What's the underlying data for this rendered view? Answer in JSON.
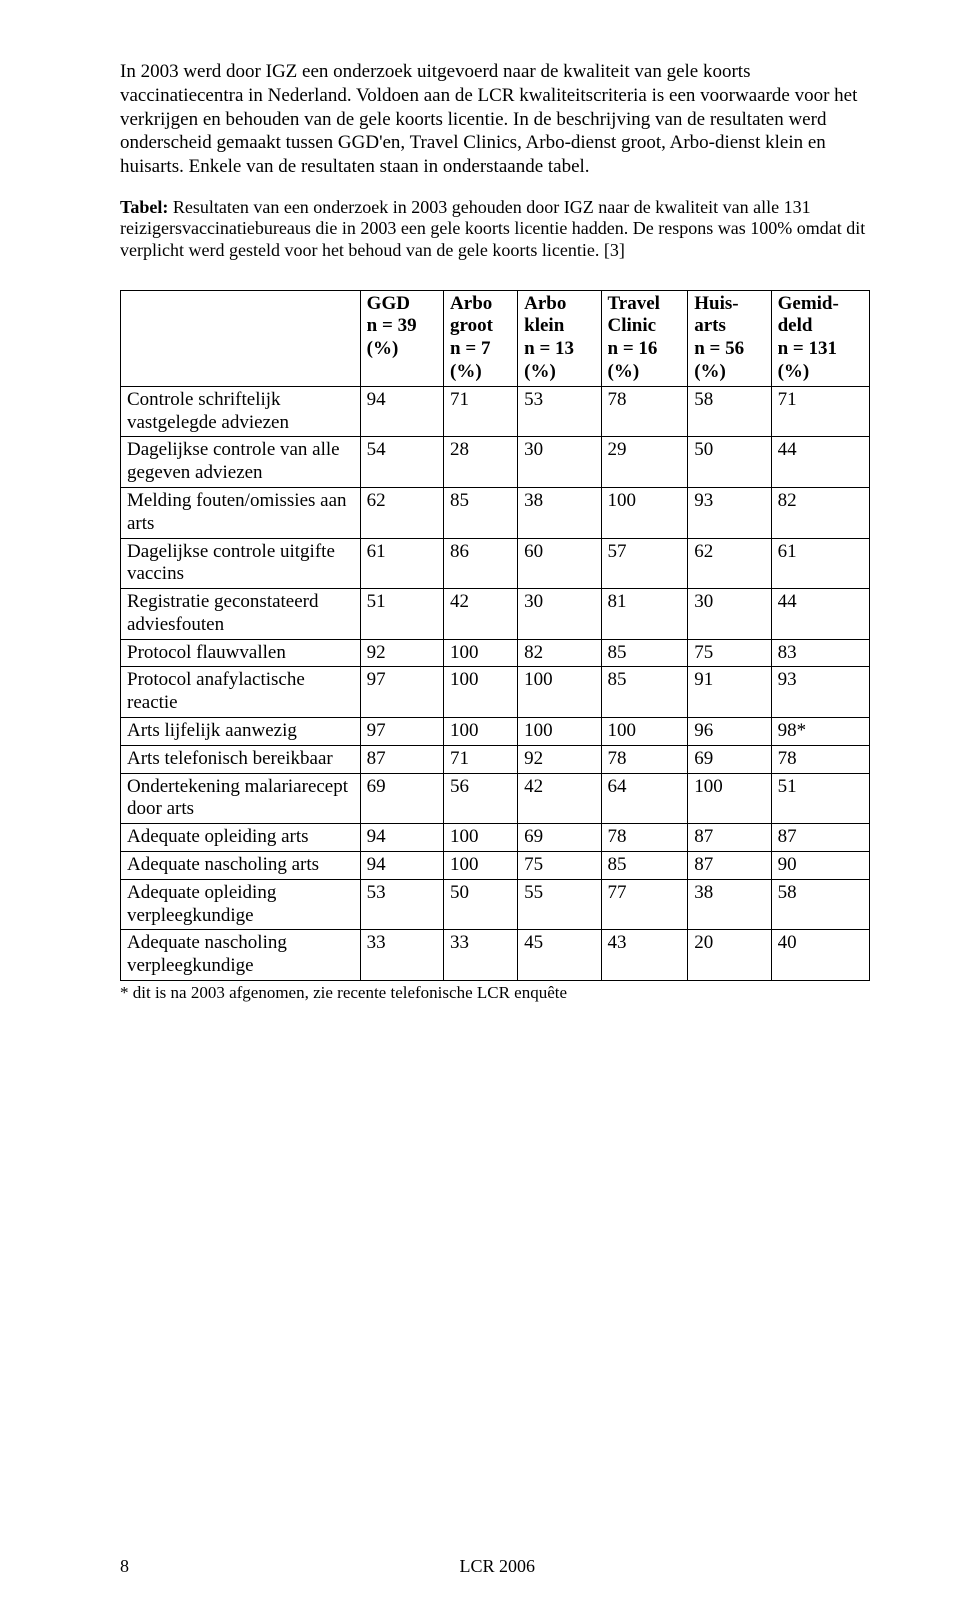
{
  "intro": {
    "para1": "In 2003 werd door IGZ een onderzoek uitgevoerd naar de kwaliteit van gele koorts vaccinatiecentra in Nederland. Voldoen aan de LCR kwaliteitscriteria is een voorwaarde voor het verkrijgen en behouden van de gele koorts licentie. In de beschrijving van de resultaten werd onderscheid gemaakt tussen GGD'en, Travel Clinics, Arbo-dienst groot, Arbo-dienst klein en huisarts. Enkele van de resultaten staan in onderstaande tabel.",
    "caption_label": "Tabel:",
    "caption_rest": " Resultaten van een onderzoek in 2003 gehouden door IGZ naar de kwaliteit van alle 131 reizigersvaccinatiebureaus die in 2003 een gele koorts licentie hadden. De respons was 100% omdat dit verplicht werd gesteld voor het behoud van de gele koorts licentie. [3]"
  },
  "table": {
    "headers": [
      {
        "l1": "",
        "l2": "",
        "l3": "",
        "l4": ""
      },
      {
        "l1": "GGD",
        "l2": "",
        "l3": "n = 39",
        "l4": "(%)"
      },
      {
        "l1": "Arbo",
        "l2": "groot",
        "l3": "n = 7",
        "l4": "(%)"
      },
      {
        "l1": "Arbo",
        "l2": "klein",
        "l3": "n = 13",
        "l4": "(%)"
      },
      {
        "l1": "Travel",
        "l2": "Clinic",
        "l3": "n = 16",
        "l4": " (%)"
      },
      {
        "l1": "Huis-",
        "l2": "arts",
        "l3": "n = 56",
        "l4": "(%)"
      },
      {
        "l1": "Gemid-",
        "l2": "deld",
        "l3": "n = 131",
        "l4": "(%)"
      }
    ],
    "rows": [
      {
        "label": "Controle schriftelijk vastgelegde adviezen",
        "v": [
          "94",
          "71",
          "53",
          "78",
          "58",
          "71"
        ]
      },
      {
        "label": "Dagelijkse controle van alle gegeven adviezen",
        "v": [
          "54",
          "28",
          "30",
          "29",
          "50",
          "44"
        ]
      },
      {
        "label": "Melding fouten/omissies aan arts",
        "v": [
          "62",
          "85",
          "38",
          "100",
          "93",
          "82"
        ]
      },
      {
        "label": "Dagelijkse controle uitgifte vaccins",
        "v": [
          "61",
          "86",
          "60",
          "57",
          "62",
          "61"
        ]
      },
      {
        "label": "Registratie geconstateerd adviesfouten",
        "v": [
          "51",
          "42",
          "30",
          "81",
          "30",
          "44"
        ]
      },
      {
        "label": "Protocol flauwvallen",
        "v": [
          "92",
          "100",
          "82",
          "85",
          "75",
          "83"
        ]
      },
      {
        "label": "Protocol anafylactische reactie",
        "v": [
          "97",
          "100",
          "100",
          "85",
          "91",
          "93"
        ]
      },
      {
        "label": "Arts lijfelijk aanwezig",
        "v": [
          "97",
          "100",
          "100",
          "100",
          "96",
          "98*"
        ]
      },
      {
        "label": "Arts telefonisch bereikbaar",
        "v": [
          "87",
          "71",
          "92",
          "78",
          "69",
          "78"
        ]
      },
      {
        "label": "Ondertekening malariarecept door arts",
        "v": [
          "69",
          "56",
          "42",
          "64",
          "100",
          "51"
        ]
      },
      {
        "label": "Adequate opleiding arts",
        "v": [
          "94",
          "100",
          "69",
          "78",
          "87",
          "87"
        ]
      },
      {
        "label": "Adequate nascholing arts",
        "v": [
          "94",
          "100",
          "75",
          "85",
          "87",
          "90"
        ]
      },
      {
        "label": "Adequate opleiding verpleegkundige",
        "v": [
          "53",
          "50",
          "55",
          "77",
          "38",
          "58"
        ]
      },
      {
        "label": "Adequate nascholing verpleegkundige",
        "v": [
          "33",
          "33",
          "45",
          "43",
          "20",
          "40"
        ]
      }
    ],
    "footnote": "* dit is na 2003 afgenomen, zie recente telefonische LCR enquête"
  },
  "footer": {
    "page_number": "8",
    "doc_id": "LCR 2006"
  }
}
